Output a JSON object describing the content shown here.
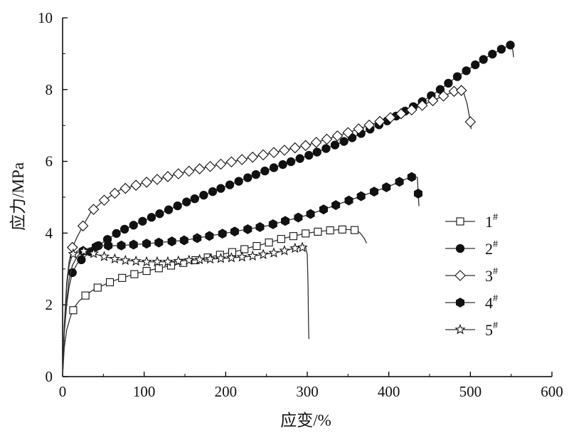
{
  "chart_data": {
    "type": "line",
    "title": "",
    "xlabel": "应变/%",
    "ylabel": "应力/MPa",
    "xlim": [
      0,
      600
    ],
    "ylim": [
      0,
      10
    ],
    "xticks": [
      0,
      100,
      200,
      300,
      400,
      500,
      600
    ],
    "yticks": [
      0,
      2,
      4,
      6,
      8,
      10
    ],
    "legend_position": "right",
    "colors": {
      "line": "#333333",
      "axis": "#000000",
      "marker_fill": "#111111",
      "hollow_fill": "#ffffff"
    },
    "series": [
      {
        "name": "1",
        "sup": "#",
        "marker": "square",
        "filled": false,
        "x": [
          0,
          2,
          5,
          10,
          15,
          20,
          30,
          40,
          50,
          60,
          70,
          80,
          90,
          100,
          110,
          120,
          130,
          140,
          150,
          160,
          170,
          180,
          190,
          200,
          210,
          220,
          230,
          240,
          250,
          260,
          270,
          280,
          290,
          300,
          310,
          320,
          330,
          340,
          350,
          360,
          365,
          370,
          372,
          373
        ],
        "y": [
          0,
          0.8,
          1.3,
          1.7,
          1.95,
          2.1,
          2.3,
          2.45,
          2.55,
          2.65,
          2.73,
          2.8,
          2.87,
          2.93,
          2.98,
          3.03,
          3.08,
          3.13,
          3.18,
          3.23,
          3.28,
          3.33,
          3.38,
          3.43,
          3.48,
          3.53,
          3.6,
          3.65,
          3.72,
          3.78,
          3.85,
          3.9,
          3.95,
          4.0,
          4.03,
          4.06,
          4.08,
          4.1,
          4.1,
          4.08,
          4.0,
          3.85,
          3.75,
          3.72
        ],
        "marker_x": [
          13,
          28,
          43,
          58,
          73,
          88,
          103,
          118,
          133,
          148,
          163,
          178,
          193,
          208,
          223,
          238,
          253,
          268,
          283,
          298,
          313,
          328,
          343,
          358
        ]
      },
      {
        "name": "2",
        "sup": "#",
        "marker": "circle",
        "filled": true,
        "x": [
          0,
          2,
          5,
          8,
          12,
          18,
          25,
          35,
          50,
          70,
          100,
          150,
          200,
          250,
          300,
          350,
          400,
          420,
          440,
          460,
          480,
          500,
          520,
          540,
          550,
          552,
          553
        ],
        "y": [
          0,
          1.2,
          2.0,
          2.5,
          2.9,
          3.15,
          3.3,
          3.5,
          3.75,
          4.05,
          4.35,
          4.85,
          5.3,
          5.75,
          6.15,
          6.6,
          7.15,
          7.4,
          7.65,
          7.95,
          8.3,
          8.6,
          8.9,
          9.15,
          9.25,
          9.1,
          8.9
        ],
        "marker_x": [
          12,
          23,
          34,
          44,
          55,
          66,
          76,
          87,
          98,
          109,
          119,
          130,
          141,
          152,
          162,
          173,
          184,
          194,
          205,
          216,
          227,
          237,
          248,
          259,
          270,
          280,
          291,
          302,
          312,
          323,
          334,
          345,
          355,
          366,
          377,
          388,
          398,
          409,
          420,
          430,
          441,
          452,
          463,
          473,
          484,
          495,
          506,
          516,
          527,
          538,
          549
        ]
      },
      {
        "name": "3",
        "sup": "#",
        "marker": "diamond",
        "filled": false,
        "x": [
          0,
          2,
          5,
          8,
          12,
          18,
          25,
          35,
          50,
          70,
          100,
          150,
          200,
          250,
          300,
          350,
          400,
          430,
          460,
          480,
          488,
          492,
          496,
          500,
          501
        ],
        "y": [
          0,
          1.4,
          2.6,
          3.2,
          3.6,
          3.9,
          4.2,
          4.6,
          4.9,
          5.2,
          5.4,
          5.7,
          5.95,
          6.2,
          6.45,
          6.8,
          7.2,
          7.45,
          7.75,
          7.95,
          8.0,
          7.9,
          7.6,
          7.1,
          6.9
        ],
        "marker_x": [
          12,
          25,
          38,
          51,
          64,
          77,
          90,
          103,
          116,
          129,
          142,
          155,
          168,
          181,
          194,
          207,
          220,
          233,
          246,
          259,
          272,
          285,
          298,
          311,
          324,
          337,
          350,
          363,
          376,
          389,
          402,
          415,
          428,
          441,
          454,
          467,
          480,
          489,
          500
        ]
      },
      {
        "name": "4",
        "sup": "#",
        "marker": "hexagon",
        "filled": true,
        "x": [
          0,
          2,
          5,
          8,
          12,
          18,
          25,
          35,
          50,
          70,
          100,
          150,
          200,
          250,
          300,
          350,
          400,
          420,
          430,
          435,
          436,
          437
        ],
        "y": [
          0,
          1.2,
          2.1,
          2.7,
          3.1,
          3.35,
          3.5,
          3.6,
          3.65,
          3.65,
          3.7,
          3.8,
          4.0,
          4.2,
          4.5,
          4.9,
          5.3,
          5.5,
          5.58,
          5.55,
          5.1,
          4.75
        ],
        "marker_x": [
          25,
          41,
          56,
          72,
          87,
          103,
          118,
          134,
          149,
          165,
          180,
          196,
          211,
          227,
          242,
          258,
          273,
          289,
          304,
          320,
          335,
          351,
          366,
          382,
          397,
          413,
          428,
          436
        ]
      },
      {
        "name": "5",
        "sup": "#",
        "marker": "star",
        "filled": false,
        "x": [
          0,
          2,
          5,
          8,
          12,
          18,
          25,
          35,
          50,
          70,
          100,
          130,
          160,
          200,
          230,
          260,
          290,
          298,
          300,
          301,
          301.5,
          302
        ],
        "y": [
          0,
          1.3,
          2.5,
          3.1,
          3.4,
          3.5,
          3.5,
          3.45,
          3.35,
          3.25,
          3.2,
          3.2,
          3.25,
          3.3,
          3.35,
          3.45,
          3.6,
          3.6,
          3.4,
          2.5,
          1.5,
          1.05
        ],
        "marker_x": [
          13,
          26,
          38,
          51,
          64,
          77,
          90,
          103,
          116,
          129,
          142,
          155,
          168,
          181,
          194,
          207,
          220,
          233,
          246,
          259,
          272,
          285,
          294
        ]
      }
    ]
  }
}
